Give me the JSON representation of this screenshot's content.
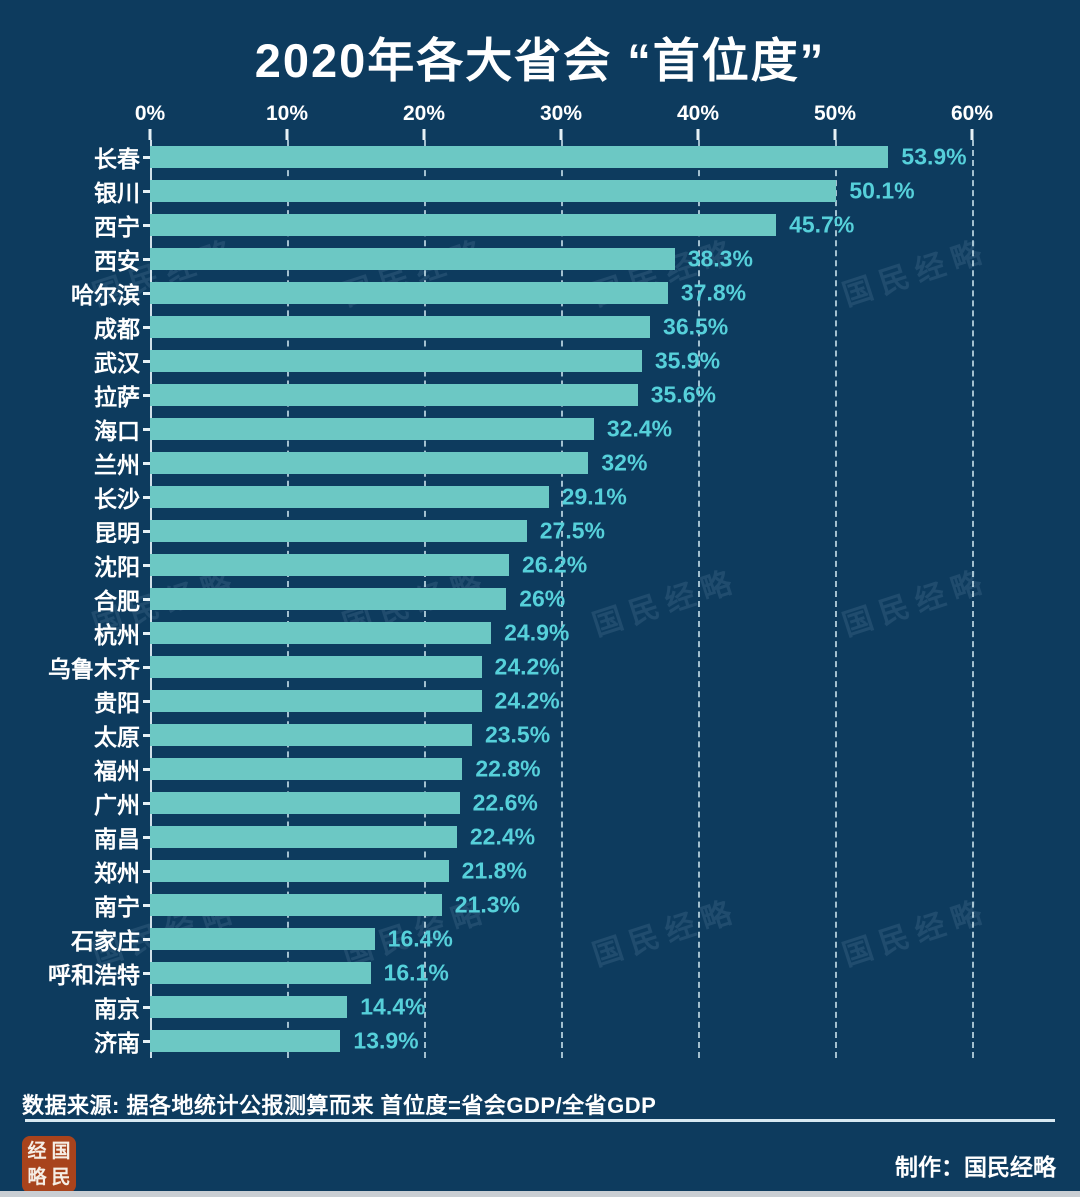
{
  "title": "2020年各大省会 “首位度”",
  "chart_data": {
    "type": "bar",
    "orientation": "horizontal",
    "title": "2020年各大省会 “首位度”",
    "categories": [
      "长春",
      "银川",
      "西宁",
      "西安",
      "哈尔滨",
      "成都",
      "武汉",
      "拉萨",
      "海口",
      "兰州",
      "长沙",
      "昆明",
      "沈阳",
      "合肥",
      "杭州",
      "乌鲁木齐",
      "贵阳",
      "太原",
      "福州",
      "广州",
      "南昌",
      "郑州",
      "南宁",
      "石家庄",
      "呼和浩特",
      "南京",
      "济南"
    ],
    "values": [
      53.9,
      50.1,
      45.7,
      38.3,
      37.8,
      36.5,
      35.9,
      35.6,
      32.4,
      32,
      29.1,
      27.5,
      26.2,
      26,
      24.9,
      24.2,
      24.2,
      23.5,
      22.8,
      22.6,
      22.4,
      21.8,
      21.3,
      16.4,
      16.1,
      14.4,
      13.9
    ],
    "value_labels": [
      "53.9%",
      "50.1%",
      "45.7%",
      "38.3%",
      "37.8%",
      "36.5%",
      "35.9%",
      "35.6%",
      "32.4%",
      "32%",
      "29.1%",
      "27.5%",
      "26.2%",
      "26%",
      "24.9%",
      "24.2%",
      "24.2%",
      "23.5%",
      "22.8%",
      "22.6%",
      "22.4%",
      "21.8%",
      "21.3%",
      "16.4%",
      "16.1%",
      "14.4%",
      "13.9%"
    ],
    "x_ticks": [
      "0%",
      "10%",
      "20%",
      "30%",
      "40%",
      "50%",
      "60%"
    ],
    "xlim": [
      0,
      60
    ],
    "grid": "vertical-dashed",
    "legend": "none"
  },
  "colors": {
    "background": "#0d3b5e",
    "bar": "#6cc8c4",
    "value_label": "#56d0da",
    "text": "#ffffff",
    "gridline": "#d6eef6",
    "seal": "#a8431c",
    "divider": "#d7e8f2"
  },
  "watermark": {
    "text": "国民经略"
  },
  "footer": {
    "source": "数据来源: 据各地统计公报测算而来  首位度=省会GDP/全省GDP",
    "credit": "制作：国民经略",
    "seal_chars": [
      "经",
      "国",
      "略",
      "民"
    ]
  }
}
